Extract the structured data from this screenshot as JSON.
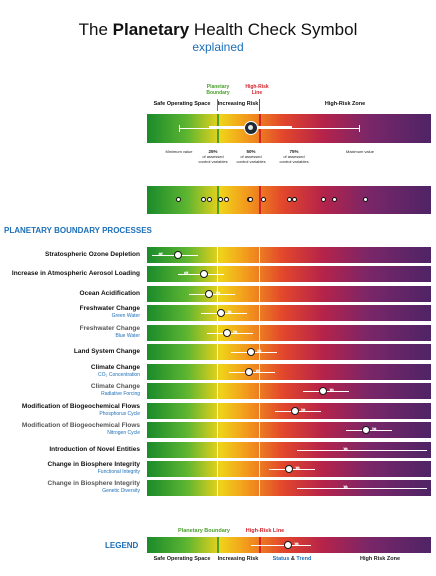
{
  "header": {
    "title_pre": "The ",
    "title_bold": "Planetary",
    "title_post": " Health Check Symbol",
    "subtitle": "explained"
  },
  "explainer": {
    "planetary_boundary": "Planetary Boundary",
    "high_risk_line": "High-Risk Line",
    "safe_zone": "Safe Operating Space",
    "increasing_risk": "Increasing Risk",
    "high_risk_zone": "High-Risk Zone",
    "minimum_value": "Minimum value",
    "maximum_value": "Maximum value",
    "p25": "25%",
    "p50": "50%",
    "p75": "75%",
    "of_assessed": "of assessed control variables"
  },
  "section_title": "PLANETARY BOUNDARY PROCESSES",
  "processes": [
    {
      "label": "Stratospheric Ozone Depletion",
      "sub": "",
      "light": false,
      "marker": 0.11,
      "trend": "left"
    },
    {
      "label": "Increase in Atmospheric Aerosol Loading",
      "sub": "",
      "light": false,
      "marker": 0.2,
      "trend": "left"
    },
    {
      "label": "Ocean Acidification",
      "sub": "",
      "light": false,
      "marker": 0.22,
      "trend": "right"
    },
    {
      "label": "Freshwater Change",
      "sub": "Green Water",
      "light": false,
      "marker": 0.26,
      "trend": "right"
    },
    {
      "label": "Freshwater Change",
      "sub": "Blue Water",
      "light": true,
      "marker": 0.28,
      "trend": "right"
    },
    {
      "label": "Land System Change",
      "sub": "",
      "light": false,
      "marker": 0.365,
      "trend": "right"
    },
    {
      "label": "Climate Change",
      "sub": "CO₂ Concentration",
      "light": false,
      "marker": 0.36,
      "trend": "right"
    },
    {
      "label": "Climate Change",
      "sub": "Radiative Forcing",
      "light": true,
      "marker": 0.62,
      "trend": "right"
    },
    {
      "label": "Modification of Biogeochemical Flows",
      "sub": "Phosphorus Cycle",
      "light": false,
      "marker": 0.52,
      "trend": "right"
    },
    {
      "label": "Modification of Biogeochemical Flows",
      "sub": "Nitrogen Cycle",
      "light": true,
      "marker": 0.77,
      "trend": "right"
    },
    {
      "label": "Introduction of Novel Entities",
      "sub": "",
      "light": false,
      "marker": null,
      "trend": "right"
    },
    {
      "label": "Change in Biosphere Integrity",
      "sub": "Functional Integrity",
      "light": false,
      "marker": 0.5,
      "trend": "right"
    },
    {
      "label": "Change in Biosphere Integrity",
      "sub": "Genetic Diversity",
      "light": true,
      "marker": null,
      "trend": "right"
    }
  ],
  "legend": {
    "title": "LEGEND",
    "planetary_boundary": "Planetary Boundary",
    "high_risk_line": "High-Risk Line",
    "safe": "Safe Operating Space",
    "increasing_risk": "Increasing Risk",
    "status": "Status",
    "amp": " & ",
    "trend": "Trend",
    "high_risk": "High Risk Zone"
  },
  "colors": {
    "accent_blue": "#1c6fb8",
    "boundary_green": "#4aa02c",
    "high_risk_red": "#d2232a"
  }
}
